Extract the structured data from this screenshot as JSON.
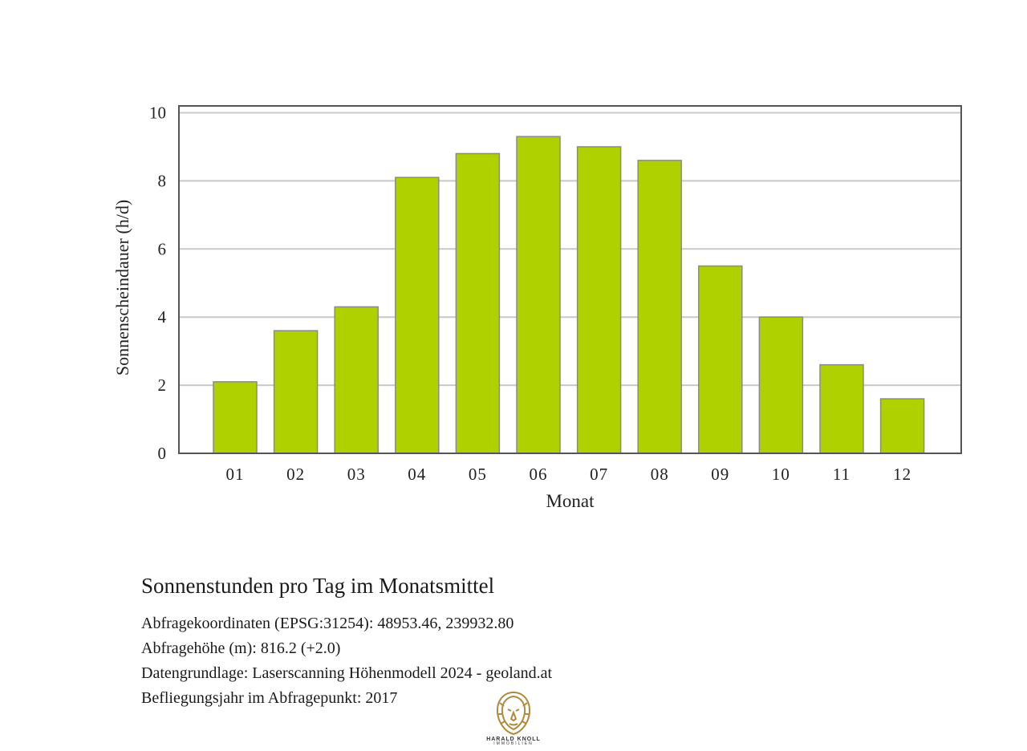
{
  "chart_data": {
    "type": "bar",
    "categories": [
      "01",
      "02",
      "03",
      "04",
      "05",
      "06",
      "07",
      "08",
      "09",
      "10",
      "11",
      "12"
    ],
    "values": [
      2.1,
      3.6,
      4.3,
      8.1,
      8.8,
      9.3,
      9.0,
      8.6,
      5.5,
      4.0,
      2.6,
      1.6
    ],
    "xlabel": "Monat",
    "ylabel": "Sonnenscheindauer (h/d)",
    "ylim": [
      0,
      10
    ],
    "yticks": [
      0,
      2,
      4,
      6,
      8,
      10
    ],
    "grid": true,
    "bar_color": "#b0d100",
    "bar_edge_color": "#8a8a8a"
  },
  "caption": {
    "title": "Sonnenstunden pro Tag im Monatsmittel",
    "lines": [
      "Abfragekoordinaten (EPSG:31254): 48953.46, 239932.80",
      "Abfragehöhe (m): 816.2 (+2.0)",
      "Datengrundlage: Laserscanning Höhenmodell 2024 - geoland.at",
      "Befliegungsjahr im Abfragepunkt: 2017"
    ]
  },
  "logo": {
    "name": "HARALD KNOLL",
    "sub": "IMMOBILIEN",
    "icon": "lion-head-icon",
    "color": "#b08a3c"
  }
}
